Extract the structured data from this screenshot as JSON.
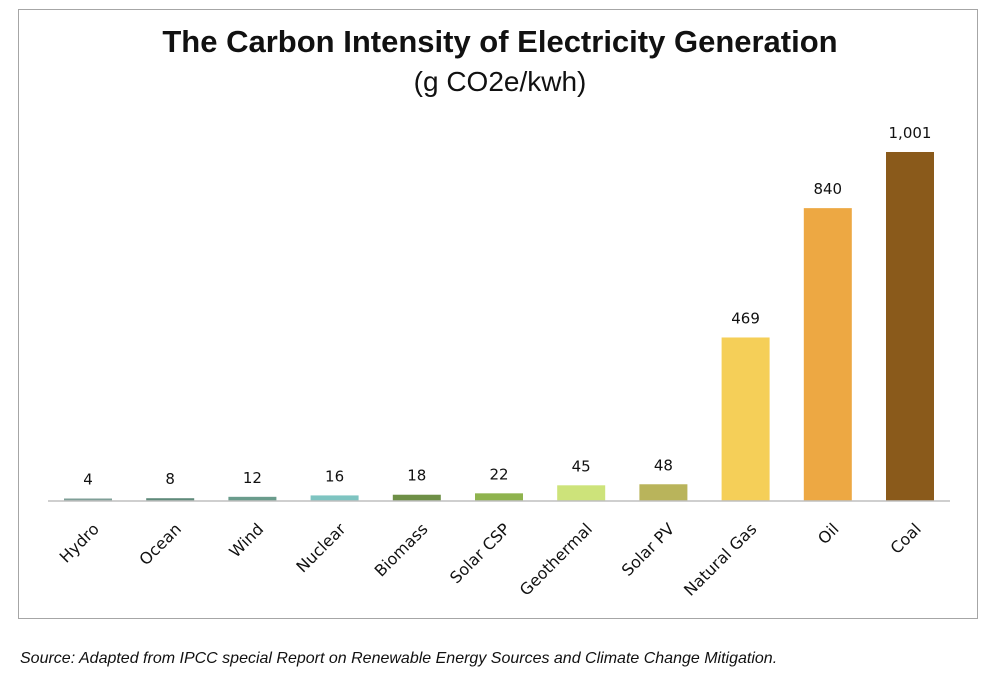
{
  "chart_data": {
    "type": "bar",
    "title": "The Carbon Intensity of Electricity Generation",
    "subtitle": "(g CO2e/kwh)",
    "categories": [
      "Hydro",
      "Ocean",
      "Wind",
      "Nuclear",
      "Biomass",
      "Solar CSP",
      "Geothermal",
      "Solar PV",
      "Natural Gas",
      "Oil",
      "Coal"
    ],
    "values": [
      4,
      8,
      12,
      16,
      18,
      22,
      45,
      48,
      469,
      840,
      1001
    ],
    "value_labels": [
      "4",
      "8",
      "12",
      "16",
      "18",
      "22",
      "45",
      "48",
      "469",
      "840",
      "1,001"
    ],
    "bar_colors": [
      "#7f9f97",
      "#5f8a7a",
      "#6a9c8c",
      "#7ec4c1",
      "#6e8f46",
      "#8fb34e",
      "#cde37a",
      "#b9b45b",
      "#f5cf58",
      "#eda843",
      "#8a5a1b"
    ],
    "xlabel": "",
    "ylabel": "",
    "ylim": [
      0,
      1001
    ],
    "grid": false,
    "legend": "none"
  },
  "source": "Source: Adapted from IPCC special Report on Renewable Energy Sources and Climate Change Mitigation."
}
